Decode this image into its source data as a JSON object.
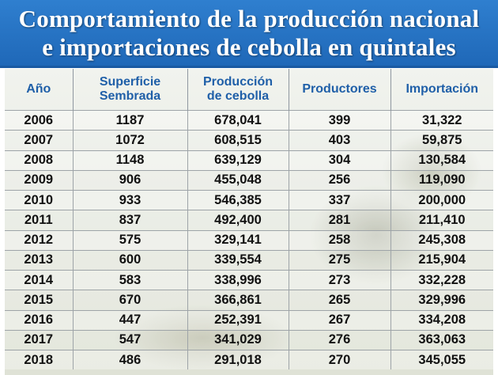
{
  "title": {
    "line1": "Comportamiento de la producción nacional",
    "line2": "e importaciones de cebolla en quintales"
  },
  "colors": {
    "title_bg": "#2770c0",
    "header_text": "#1f5fa8",
    "cell_text": "#111111"
  },
  "chart_data": {
    "type": "table",
    "title": "Comportamiento de la producción nacional e importaciones de cebolla en quintales",
    "columns": [
      {
        "line1": "Año",
        "line2": ""
      },
      {
        "line1": "Superficie",
        "line2": "Sembrada"
      },
      {
        "line1": "Producción",
        "line2": "de cebolla"
      },
      {
        "line1": "Productores",
        "line2": ""
      },
      {
        "line1": "Importación",
        "line2": ""
      }
    ],
    "rows": [
      [
        "2006",
        "1187",
        "678,041",
        "399",
        "31,322"
      ],
      [
        "2007",
        "1072",
        "608,515",
        "403",
        "59,875"
      ],
      [
        "2008",
        "1148",
        "639,129",
        "304",
        "130,584"
      ],
      [
        "2009",
        "906",
        "455,048",
        "256",
        "119,090"
      ],
      [
        "2010",
        "933",
        "546,385",
        "337",
        "200,000"
      ],
      [
        "2011",
        "837",
        "492,400",
        "281",
        "211,410"
      ],
      [
        "2012",
        "575",
        "329,141",
        "258",
        "245,308"
      ],
      [
        "2013",
        "600",
        "339,554",
        "275",
        "215,904"
      ],
      [
        "2014",
        "583",
        "338,996",
        "273",
        "332,228"
      ],
      [
        "2015",
        "670",
        "366,861",
        "265",
        "329,996"
      ],
      [
        "2016",
        "447",
        "252,391",
        "267",
        "334,208"
      ],
      [
        "2017",
        "547",
        "341,029",
        "276",
        "363,063"
      ],
      [
        "2018",
        "486",
        "291,018",
        "270",
        "345,055"
      ]
    ]
  }
}
